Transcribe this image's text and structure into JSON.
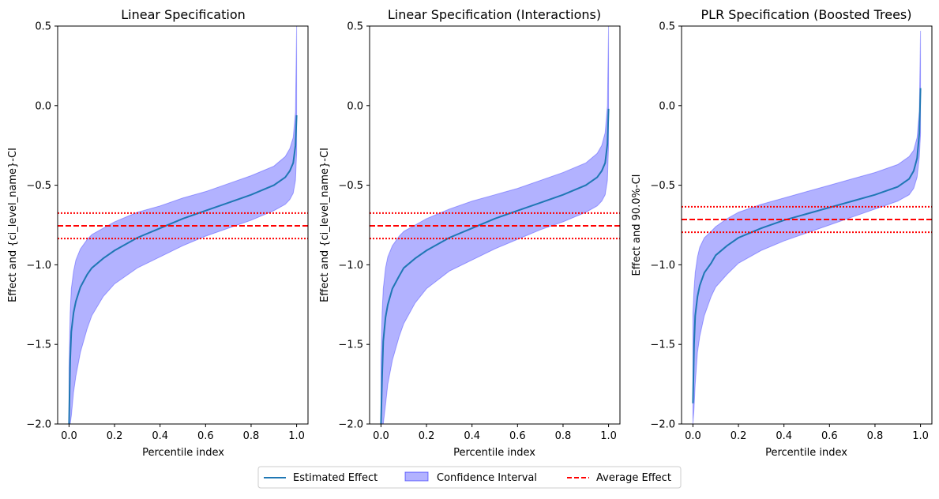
{
  "chart_data": [
    {
      "type": "line",
      "title": "Linear Specification",
      "xlabel": "Percentile index",
      "ylabel": "Effect and {ci_level_name}-CI",
      "xlim": [
        -0.05,
        1.05
      ],
      "ylim": [
        -2.0,
        0.5
      ],
      "xticks": [
        "0.0",
        "0.2",
        "0.4",
        "0.6",
        "0.8",
        "1.0"
      ],
      "yticks": [
        "−2.0",
        "−1.5",
        "−1.0",
        "−0.5",
        "0.0",
        "0.5"
      ],
      "x": [
        0.0,
        0.005,
        0.01,
        0.02,
        0.03,
        0.05,
        0.08,
        0.1,
        0.15,
        0.2,
        0.3,
        0.4,
        0.5,
        0.6,
        0.7,
        0.8,
        0.9,
        0.95,
        0.97,
        0.985,
        0.995,
        1.0
      ],
      "estimate": [
        -2.0,
        -1.6,
        -1.42,
        -1.3,
        -1.23,
        -1.14,
        -1.06,
        -1.02,
        -0.96,
        -0.91,
        -0.83,
        -0.77,
        -0.71,
        -0.66,
        -0.61,
        -0.56,
        -0.5,
        -0.45,
        -0.41,
        -0.36,
        -0.25,
        -0.06
      ],
      "ci_lower": [
        -2.0,
        -2.0,
        -1.95,
        -1.8,
        -1.7,
        -1.55,
        -1.4,
        -1.32,
        -1.2,
        -1.12,
        -1.02,
        -0.95,
        -0.88,
        -0.82,
        -0.77,
        -0.72,
        -0.66,
        -0.62,
        -0.59,
        -0.55,
        -0.47,
        -0.3
      ],
      "ci_upper": [
        -1.65,
        -1.3,
        -1.15,
        -1.04,
        -0.97,
        -0.9,
        -0.84,
        -0.81,
        -0.77,
        -0.73,
        -0.67,
        -0.63,
        -0.58,
        -0.54,
        -0.49,
        -0.44,
        -0.38,
        -0.32,
        -0.27,
        -0.2,
        -0.04,
        0.5
      ],
      "average_effect": -0.755,
      "average_ci": [
        -0.835,
        -0.675
      ]
    },
    {
      "type": "line",
      "title": "Linear Specification (Interactions)",
      "xlabel": "Percentile index",
      "ylabel": "Effect and {ci_level_name}-CI",
      "xlim": [
        -0.05,
        1.05
      ],
      "ylim": [
        -2.0,
        0.5
      ],
      "xticks": [
        "0.0",
        "0.2",
        "0.4",
        "0.6",
        "0.8",
        "1.0"
      ],
      "yticks": [
        "−2.0",
        "−1.5",
        "−1.0",
        "−0.5",
        "0.0",
        "0.5"
      ],
      "x": [
        0.0,
        0.005,
        0.01,
        0.02,
        0.03,
        0.05,
        0.08,
        0.1,
        0.15,
        0.2,
        0.3,
        0.4,
        0.5,
        0.6,
        0.7,
        0.8,
        0.9,
        0.95,
        0.97,
        0.985,
        0.995,
        1.0
      ],
      "estimate": [
        -2.0,
        -1.7,
        -1.48,
        -1.33,
        -1.25,
        -1.15,
        -1.07,
        -1.02,
        -0.96,
        -0.91,
        -0.83,
        -0.77,
        -0.71,
        -0.66,
        -0.61,
        -0.56,
        -0.5,
        -0.45,
        -0.41,
        -0.36,
        -0.24,
        -0.02
      ],
      "ci_lower": [
        -2.0,
        -2.0,
        -2.0,
        -1.88,
        -1.75,
        -1.6,
        -1.45,
        -1.37,
        -1.24,
        -1.15,
        -1.04,
        -0.97,
        -0.9,
        -0.84,
        -0.78,
        -0.73,
        -0.67,
        -0.63,
        -0.6,
        -0.56,
        -0.47,
        -0.25
      ],
      "ci_upper": [
        -1.6,
        -1.3,
        -1.15,
        -1.02,
        -0.95,
        -0.88,
        -0.82,
        -0.79,
        -0.75,
        -0.71,
        -0.65,
        -0.6,
        -0.56,
        -0.52,
        -0.47,
        -0.42,
        -0.36,
        -0.3,
        -0.25,
        -0.17,
        0.0,
        0.5
      ],
      "average_effect": -0.755,
      "average_ci": [
        -0.835,
        -0.675
      ]
    },
    {
      "type": "line",
      "title": "PLR Specification (Boosted Trees)",
      "xlabel": "Percentile index",
      "ylabel": "Effect and 90.0%-CI",
      "xlim": [
        -0.05,
        1.05
      ],
      "ylim": [
        -2.0,
        0.5
      ],
      "xticks": [
        "0.0",
        "0.2",
        "0.4",
        "0.6",
        "0.8",
        "1.0"
      ],
      "yticks": [
        "−2.0",
        "−1.5",
        "−1.0",
        "−0.5",
        "0.0",
        "0.5"
      ],
      "x": [
        0.0,
        0.005,
        0.01,
        0.02,
        0.03,
        0.05,
        0.08,
        0.1,
        0.15,
        0.2,
        0.3,
        0.4,
        0.5,
        0.6,
        0.7,
        0.8,
        0.9,
        0.95,
        0.97,
        0.985,
        0.995,
        1.0
      ],
      "estimate": [
        -1.87,
        -1.5,
        -1.32,
        -1.2,
        -1.13,
        -1.05,
        -0.99,
        -0.94,
        -0.88,
        -0.83,
        -0.77,
        -0.72,
        -0.68,
        -0.64,
        -0.6,
        -0.56,
        -0.51,
        -0.46,
        -0.41,
        -0.33,
        -0.17,
        0.11
      ],
      "ci_lower": [
        -2.0,
        -1.9,
        -1.75,
        -1.55,
        -1.45,
        -1.32,
        -1.2,
        -1.14,
        -1.06,
        -0.99,
        -0.91,
        -0.85,
        -0.8,
        -0.75,
        -0.7,
        -0.65,
        -0.6,
        -0.56,
        -0.52,
        -0.45,
        -0.32,
        -0.18
      ],
      "ci_upper": [
        -1.3,
        -1.15,
        -1.05,
        -0.95,
        -0.89,
        -0.83,
        -0.79,
        -0.76,
        -0.71,
        -0.67,
        -0.62,
        -0.58,
        -0.54,
        -0.5,
        -0.46,
        -0.42,
        -0.37,
        -0.32,
        -0.28,
        -0.2,
        -0.03,
        0.47
      ],
      "average_effect": -0.715,
      "average_ci": [
        -0.795,
        -0.635
      ]
    }
  ],
  "legend": {
    "estimate_label": "Estimated Effect",
    "ci_label": "Confidence Interval",
    "average_label": "Average Effect"
  },
  "colors": {
    "estimate": "#1f77b4",
    "ci_fill": "#0000ff",
    "average": "#ff0000"
  }
}
